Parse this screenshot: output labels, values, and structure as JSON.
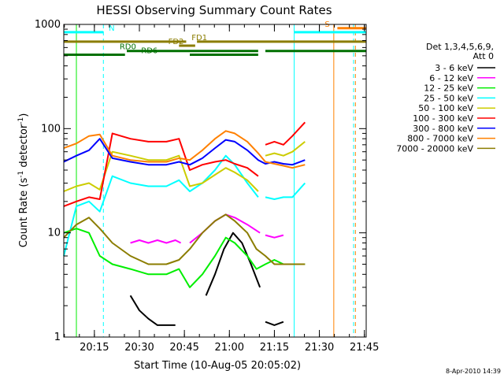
{
  "chart_data": {
    "type": "line",
    "title": "HESSI Observing Summary Count Rates",
    "xlabel": "Start Time (10-Aug-05 20:05:02)",
    "ylabel_main": "Count Rate (s",
    "ylabel_sup1": "-1",
    "ylabel_mid": " detector",
    "ylabel_sup2": "-1",
    "ylabel_end": ")",
    "xlim": [
      20.08,
      21.76
    ],
    "ylim": [
      1,
      1000
    ],
    "yscale": "log",
    "x_ticks": [
      {
        "value": 20.25,
        "label": "20:15"
      },
      {
        "value": 20.5,
        "label": "20:30"
      },
      {
        "value": 20.75,
        "label": "20:45"
      },
      {
        "value": 21.0,
        "label": "21:00"
      },
      {
        "value": 21.25,
        "label": "21:15"
      },
      {
        "value": 21.5,
        "label": "21:30"
      },
      {
        "value": 21.75,
        "label": "21:45"
      }
    ],
    "y_ticks": [
      {
        "value": 1,
        "label": "1"
      },
      {
        "value": 10,
        "label": "10"
      },
      {
        "value": 100,
        "label": "100"
      },
      {
        "value": 1000,
        "label": "1000"
      }
    ],
    "legend": {
      "position": "right",
      "header": [
        "Det 1,3,4,5,6,9,",
        "Att 0"
      ],
      "entries": [
        {
          "name": "3 - 6 keV",
          "color": "#000000"
        },
        {
          "name": "6 - 12 keV",
          "color": "#ff00ff"
        },
        {
          "name": "12 - 25 keV",
          "color": "#00ee00"
        },
        {
          "name": "25 - 50 keV",
          "color": "#00ffff"
        },
        {
          "name": "50 - 100 keV",
          "color": "#cccc00"
        },
        {
          "name": "100 - 300 keV",
          "color": "#ff0000"
        },
        {
          "name": "300 - 800 keV",
          "color": "#0000ff"
        },
        {
          "name": "800 - 7000 keV",
          "color": "#ff8000"
        },
        {
          "name": "7000 - 20000 keV",
          "color": "#8b7d00"
        }
      ]
    },
    "series": [
      {
        "name": "3 - 6 keV",
        "color": "#000000",
        "segments": [
          {
            "x": [
              20.45,
              20.5,
              20.55,
              20.6,
              20.65,
              20.7
            ],
            "y": [
              2.5,
              1.8,
              1.5,
              1.3,
              1.3,
              1.3
            ]
          },
          {
            "x": [
              20.87,
              20.92,
              20.97,
              21.02,
              21.07,
              21.12,
              21.17
            ],
            "y": [
              2.5,
              4,
              7,
              10,
              8,
              5,
              3
            ]
          },
          {
            "x": [
              21.2,
              21.25,
              21.3
            ],
            "y": [
              1.4,
              1.3,
              1.4
            ]
          }
        ]
      },
      {
        "name": "6 - 12 keV",
        "color": "#ff00ff",
        "segments": [
          {
            "x": [
              20.45,
              20.5,
              20.55,
              20.6,
              20.65,
              20.7,
              20.73
            ],
            "y": [
              8,
              8.5,
              8,
              8.5,
              8,
              8.5,
              8
            ]
          },
          {
            "x": [
              20.78,
              20.85,
              20.92,
              20.98,
              21.03,
              21.1,
              21.17
            ],
            "y": [
              8,
              10,
              13,
              15,
              14,
              12,
              10
            ]
          },
          {
            "x": [
              21.2,
              21.25,
              21.3
            ],
            "y": [
              9.5,
              9,
              9.5
            ]
          }
        ]
      },
      {
        "name": "12 - 25 keV",
        "color": "#00ee00",
        "segments": [
          {
            "x": [
              20.08,
              20.15,
              20.22,
              20.28,
              20.35,
              20.45,
              20.55,
              20.65,
              20.72,
              20.78,
              20.85,
              20.92,
              20.98,
              21.03,
              21.1,
              21.15,
              21.2,
              21.25,
              21.3,
              21.35,
              21.42
            ],
            "y": [
              10,
              11,
              10,
              6,
              5,
              4.5,
              4,
              4,
              4.5,
              3,
              4,
              6,
              9,
              8,
              6,
              4.5,
              5,
              5.5,
              5,
              5,
              5
            ]
          }
        ]
      },
      {
        "name": "25 - 50 keV",
        "color": "#00ffff",
        "segments": [
          {
            "x": [
              20.08,
              20.15,
              20.22,
              20.28,
              20.35,
              20.45,
              20.55,
              20.65,
              20.72,
              20.78,
              20.85,
              20.92,
              20.98,
              21.03,
              21.1,
              21.16
            ],
            "y": [
              6,
              18,
              20,
              16,
              35,
              30,
              28,
              28,
              32,
              25,
              30,
              40,
              55,
              45,
              30,
              22
            ]
          },
          {
            "x": [
              21.2,
              21.25,
              21.3,
              21.35,
              21.42
            ],
            "y": [
              22,
              21,
              22,
              22,
              30
            ]
          }
        ]
      },
      {
        "name": "50 - 100 keV",
        "color": "#cccc00",
        "segments": [
          {
            "x": [
              20.08,
              20.15,
              20.22,
              20.28,
              20.35,
              20.45,
              20.55,
              20.65,
              20.72,
              20.78,
              20.85,
              20.92,
              20.98,
              21.03,
              21.1,
              21.16
            ],
            "y": [
              25,
              28,
              30,
              26,
              60,
              55,
              50,
              50,
              55,
              28,
              30,
              36,
              42,
              38,
              32,
              25
            ]
          },
          {
            "x": [
              21.2,
              21.25,
              21.3,
              21.35,
              21.42
            ],
            "y": [
              55,
              58,
              55,
              60,
              75
            ]
          }
        ]
      },
      {
        "name": "100 - 300 keV",
        "color": "#ff0000",
        "segments": [
          {
            "x": [
              20.08,
              20.15,
              20.22,
              20.28,
              20.35,
              20.45,
              20.55,
              20.65,
              20.72,
              20.78,
              20.85,
              20.92,
              20.98,
              21.03,
              21.1,
              21.16
            ],
            "y": [
              18,
              20,
              22,
              21,
              90,
              80,
              75,
              75,
              80,
              40,
              45,
              48,
              50,
              46,
              42,
              35
            ]
          },
          {
            "x": [
              21.2,
              21.25,
              21.3,
              21.35,
              21.42
            ],
            "y": [
              70,
              75,
              70,
              85,
              115
            ]
          }
        ]
      },
      {
        "name": "300 - 800 keV",
        "color": "#0000ff",
        "segments": [
          {
            "x": [
              20.08,
              20.15,
              20.22,
              20.28,
              20.35,
              20.45,
              20.55,
              20.65,
              20.72,
              20.78,
              20.85,
              20.92,
              20.98,
              21.03,
              21.1,
              21.16,
              21.2,
              21.25,
              21.3,
              21.35,
              21.42
            ],
            "y": [
              48,
              55,
              62,
              80,
              52,
              48,
              45,
              45,
              48,
              45,
              52,
              65,
              78,
              75,
              62,
              50,
              46,
              48,
              46,
              45,
              50
            ]
          }
        ]
      },
      {
        "name": "800 - 7000 keV",
        "color": "#ff8000",
        "segments": [
          {
            "x": [
              20.08,
              20.15,
              20.22,
              20.28,
              20.35,
              20.45,
              20.55,
              20.65,
              20.72,
              20.78,
              20.85,
              20.92,
              20.98,
              21.03,
              21.1,
              21.16,
              21.2,
              21.25,
              21.3,
              21.35,
              21.42
            ],
            "y": [
              65,
              72,
              85,
              88,
              55,
              50,
              48,
              48,
              52,
              50,
              62,
              80,
              95,
              90,
              75,
              58,
              48,
              46,
              44,
              42,
              45
            ]
          }
        ]
      },
      {
        "name": "7000 - 20000 keV",
        "color": "#8b7d00",
        "segments": [
          {
            "x": [
              20.08,
              20.15,
              20.22,
              20.28,
              20.35,
              20.45,
              20.55,
              20.65,
              20.72,
              20.78,
              20.85,
              20.92,
              20.98,
              21.03,
              21.1,
              21.15,
              21.2,
              21.25,
              21.3,
              21.35,
              21.42
            ],
            "y": [
              9,
              12,
              14,
              11,
              8,
              6,
              5,
              5,
              5.5,
              7,
              10,
              13,
              15,
              13,
              10,
              7,
              6,
              5,
              5,
              5,
              5
            ]
          }
        ]
      }
    ],
    "verticals": [
      {
        "x": 20.08,
        "color": "#00ffff",
        "dash": false
      },
      {
        "x": 20.15,
        "color": "#00ee00",
        "dash": false
      },
      {
        "x": 20.3,
        "color": "#00ffff",
        "dash": true
      },
      {
        "x": 21.36,
        "color": "#00ffff",
        "dash": false
      },
      {
        "x": 21.58,
        "color": "#ff8000",
        "dash": false
      },
      {
        "x": 21.69,
        "color": "#00ffff",
        "dash": true
      },
      {
        "x": 21.7,
        "color": "#ff8000",
        "dash": true
      }
    ],
    "flag_bars": [
      {
        "label": "N",
        "color": "#00ffff",
        "y_frac": 0.025,
        "segments": [
          [
            20.08,
            20.3
          ],
          [
            21.36,
            21.76
          ]
        ],
        "label_x": 20.33
      },
      {
        "label": "S",
        "color": "#ff8000",
        "y_frac": 0.012,
        "segments": [
          [
            21.6,
            21.76
          ]
        ],
        "label_x": 21.53
      },
      {
        "label": "FD1",
        "color": "#8b7d00",
        "y_frac": 0.055,
        "segments": [
          [
            20.08,
            20.76
          ],
          [
            20.82,
            21.76
          ]
        ],
        "label_x": 20.79
      },
      {
        "label": "FD2",
        "color": "#8b7d00",
        "y_frac": 0.068,
        "segments": [
          [
            20.72,
            20.81
          ]
        ],
        "label_x": 20.66
      },
      {
        "label": "RD0",
        "color": "#007000",
        "y_frac": 0.085,
        "segments": [
          [
            20.43,
            21.16
          ],
          [
            21.2,
            21.76
          ]
        ],
        "label_x": 20.39
      },
      {
        "label": "RD6",
        "color": "#007000",
        "y_frac": 0.097,
        "segments": [
          [
            20.08,
            20.42
          ],
          [
            20.78,
            21.16
          ]
        ],
        "label_x": 20.51
      }
    ],
    "footer_timestamp": "8-Apr-2010 14:39"
  }
}
